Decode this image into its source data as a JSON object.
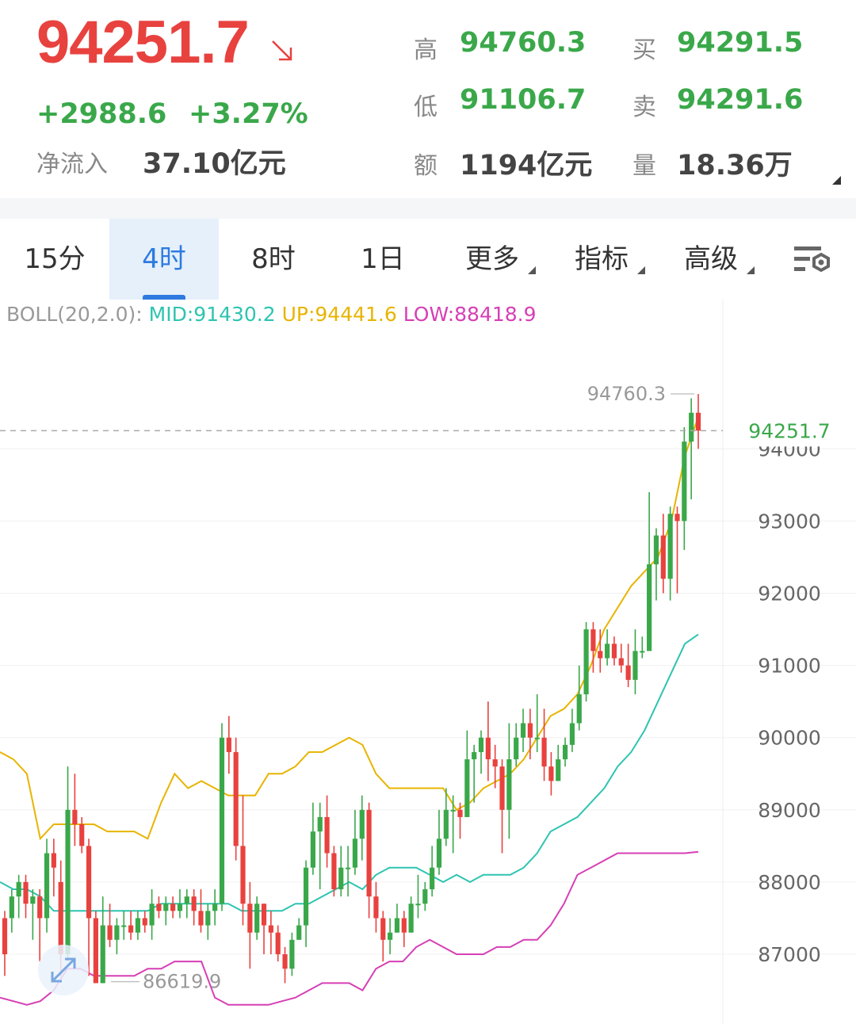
{
  "quote": {
    "price": "94251.7",
    "change": "+2988.6",
    "change_pct": "+3.27%",
    "net_inflow_label": "净流入",
    "net_inflow_value": "37.10亿元",
    "trend_icon": "arrow-down-right-icon",
    "stats": [
      {
        "label": "高",
        "value": "94760.3",
        "color": "green"
      },
      {
        "label": "买",
        "value": "94291.5",
        "color": "green"
      },
      {
        "label": "低",
        "value": "91106.7",
        "color": "green"
      },
      {
        "label": "卖",
        "value": "94291.6",
        "color": "green"
      },
      {
        "label": "额",
        "value": "1194亿元",
        "color": "dark"
      },
      {
        "label": "量",
        "value": "18.36万",
        "color": "dark"
      }
    ]
  },
  "tabs": [
    {
      "label": "15分",
      "active": false,
      "dropdown": false
    },
    {
      "label": "4时",
      "active": true,
      "dropdown": false
    },
    {
      "label": "8时",
      "active": false,
      "dropdown": false
    },
    {
      "label": "1日",
      "active": false,
      "dropdown": false
    },
    {
      "label": "更多",
      "active": false,
      "dropdown": true
    },
    {
      "label": "指标",
      "active": false,
      "dropdown": true
    },
    {
      "label": "高级",
      "active": false,
      "dropdown": true
    }
  ],
  "settings_icon": "chart-settings-icon",
  "boll": {
    "name": "BOLL(20,2.0):",
    "mid": "MID:91430.2",
    "up": "UP:94441.6",
    "low": "LOW:88418.9"
  },
  "colors": {
    "up": "#e8423f",
    "down": "#3aa84a",
    "mid_line": "#2ec4b0",
    "upper_line": "#e8b400",
    "lower_line": "#d63fb5",
    "accent": "#2e7be0"
  },
  "chart_data": {
    "type": "candlestick",
    "timeframe": "4时",
    "y_ticks": [
      94000,
      93000,
      92000,
      91000,
      90000,
      89000,
      88000,
      87000
    ],
    "ylim": [
      86100,
      95300
    ],
    "current_price": 94251.7,
    "current_price_label": "94251.7",
    "high_marker": {
      "value": 94760.3,
      "label": "94760.3"
    },
    "low_marker": {
      "value": 86619.9,
      "label": "86619.9"
    },
    "candles": [
      [
        87500,
        87000,
        87600,
        86700
      ],
      [
        87500,
        87800,
        87900,
        87300
      ],
      [
        87800,
        88000,
        88100,
        87500
      ],
      [
        88000,
        87700,
        88100,
        87500
      ],
      [
        87700,
        87800,
        87900,
        87200
      ],
      [
        87800,
        87500,
        87900,
        86900
      ],
      [
        87500,
        88400,
        88600,
        87300
      ],
      [
        88400,
        88200,
        88600,
        87800
      ],
      [
        88000,
        87000,
        88300,
        86700
      ],
      [
        87000,
        89000,
        89600,
        86900
      ],
      [
        89000,
        88800,
        89500,
        88500
      ],
      [
        88800,
        88500,
        88900,
        88400
      ],
      [
        88500,
        87500,
        88600,
        86700
      ],
      [
        87500,
        86600,
        87600,
        86700
      ],
      [
        86600,
        87400,
        87800,
        86600
      ],
      [
        87400,
        87200,
        87700,
        87100
      ],
      [
        87200,
        87400,
        87500,
        87000
      ],
      [
        87400,
        87400,
        87600,
        87200
      ],
      [
        87400,
        87300,
        87600,
        87200
      ],
      [
        87300,
        87500,
        87600,
        87200
      ],
      [
        87500,
        87400,
        87600,
        87300
      ],
      [
        87400,
        87700,
        87900,
        87200
      ],
      [
        87700,
        87600,
        87800,
        87500
      ],
      [
        87600,
        87700,
        87800,
        87400
      ],
      [
        87700,
        87600,
        87800,
        87500
      ],
      [
        87600,
        87700,
        87900,
        87500
      ],
      [
        87700,
        87800,
        87900,
        87500
      ],
      [
        87800,
        87600,
        87900,
        87400
      ],
      [
        87600,
        87400,
        87900,
        87300
      ],
      [
        87400,
        87600,
        87700,
        87200
      ],
      [
        87600,
        87700,
        87900,
        87400
      ],
      [
        87700,
        90000,
        90200,
        87600
      ],
      [
        90000,
        89800,
        90300,
        89500
      ],
      [
        89800,
        88500,
        90000,
        88300
      ],
      [
        88500,
        87700,
        89200,
        87400
      ],
      [
        87700,
        87300,
        88000,
        86800
      ],
      [
        87300,
        87700,
        87800,
        87200
      ],
      [
        87700,
        87400,
        87700,
        87000
      ],
      [
        87400,
        87300,
        87600,
        87000
      ],
      [
        87300,
        87000,
        87400,
        86900
      ],
      [
        87000,
        86800,
        87100,
        86600
      ],
      [
        86800,
        87200,
        87300,
        86700
      ],
      [
        87200,
        87400,
        87500,
        87200
      ],
      [
        87400,
        88200,
        88300,
        87100
      ],
      [
        88200,
        88700,
        89100,
        88100
      ],
      [
        88700,
        88900,
        89100,
        87900
      ],
      [
        88900,
        88400,
        89200,
        88200
      ],
      [
        88400,
        87900,
        88500,
        87800
      ],
      [
        87900,
        88200,
        88500,
        87800
      ],
      [
        88200,
        88200,
        88500,
        87800
      ],
      [
        88200,
        88600,
        89000,
        88100
      ],
      [
        88600,
        89000,
        89200,
        88300
      ],
      [
        89000,
        87800,
        89100,
        87500
      ],
      [
        87800,
        87500,
        88000,
        87300
      ],
      [
        87500,
        87200,
        87600,
        86900
      ],
      [
        87200,
        87300,
        87500,
        87000
      ],
      [
        87300,
        87500,
        87700,
        87300
      ],
      [
        87500,
        87300,
        87600,
        87100
      ],
      [
        87300,
        87700,
        87800,
        87300
      ],
      [
        87700,
        87700,
        88100,
        87500
      ],
      [
        87700,
        87900,
        88000,
        87600
      ],
      [
        87900,
        88200,
        88500,
        87800
      ],
      [
        88200,
        88600,
        89000,
        88100
      ],
      [
        88600,
        89000,
        89300,
        88500
      ],
      [
        89000,
        89000,
        89200,
        88400
      ],
      [
        89000,
        88900,
        89100,
        88600
      ],
      [
        88900,
        89700,
        90100,
        88900
      ],
      [
        89700,
        89800,
        89900,
        89100
      ],
      [
        89800,
        90000,
        90100,
        89500
      ],
      [
        90000,
        89700,
        90500,
        89400
      ],
      [
        89700,
        89600,
        89900,
        89300
      ],
      [
        89600,
        89000,
        89700,
        88400
      ],
      [
        89000,
        89700,
        90200,
        88600
      ],
      [
        89700,
        90000,
        90200,
        89600
      ],
      [
        90000,
        90200,
        90400,
        89800
      ],
      [
        90200,
        90000,
        90400,
        89700
      ],
      [
        90000,
        90000,
        90600,
        89800
      ],
      [
        90000,
        89600,
        90400,
        89400
      ],
      [
        89600,
        89400,
        89800,
        89200
      ],
      [
        89400,
        89700,
        89900,
        89400
      ],
      [
        89700,
        89900,
        90000,
        89600
      ],
      [
        89900,
        90200,
        90400,
        89800
      ],
      [
        90200,
        90600,
        91000,
        90100
      ],
      [
        90600,
        91500,
        91600,
        90500
      ],
      [
        91500,
        91200,
        91600,
        90900
      ],
      [
        91200,
        91100,
        91500,
        90900
      ],
      [
        91100,
        91300,
        91500,
        91000
      ],
      [
        91300,
        91100,
        91400,
        91000
      ],
      [
        91100,
        91000,
        91300,
        90900
      ],
      [
        91000,
        90800,
        91300,
        90700
      ],
      [
        90800,
        91200,
        91500,
        90600
      ],
      [
        91200,
        91200,
        91400,
        91100
      ],
      [
        91200,
        92400,
        93400,
        91300
      ],
      [
        92400,
        92800,
        92900,
        91900
      ],
      [
        92800,
        92200,
        93100,
        92000
      ],
      [
        92200,
        93100,
        93200,
        91900
      ],
      [
        93100,
        93000,
        93200,
        92000
      ],
      [
        93000,
        94100,
        94300,
        92600
      ],
      [
        94100,
        94500,
        94700,
        93300
      ],
      [
        94500,
        94252,
        94760,
        94000
      ]
    ],
    "boll_mid": [
      88000,
      87900,
      87900,
      87800,
      87600,
      87600,
      87600,
      87600,
      87600,
      87600,
      87600,
      87600,
      87700,
      87700,
      87700,
      87700,
      87700,
      87700,
      87600,
      87600,
      87600,
      87600,
      87700,
      87700,
      87800,
      87900,
      88000,
      87900,
      88100,
      88200,
      88200,
      88200,
      88100,
      88000,
      88100,
      88000,
      88100,
      88100,
      88100,
      88200,
      88400,
      88700,
      88800,
      88900,
      89100,
      89300,
      89600,
      89800,
      90100,
      90500,
      90900,
      91300,
      91430
    ],
    "boll_upper": [
      89800,
      89700,
      89500,
      88600,
      88800,
      88800,
      88800,
      88800,
      88700,
      88700,
      88700,
      88600,
      89100,
      89500,
      89300,
      89400,
      89300,
      89200,
      89200,
      89200,
      89500,
      89500,
      89600,
      89800,
      89800,
      89900,
      90000,
      89900,
      89500,
      89300,
      89300,
      89300,
      89300,
      89300,
      89000,
      89100,
      89300,
      89400,
      89500,
      89700,
      90000,
      90300,
      90400,
      90600,
      91000,
      91500,
      91800,
      92100,
      92300,
      92500,
      93000,
      93900,
      94442
    ],
    "boll_lower": [
      86400,
      86350,
      86300,
      86350,
      86500,
      86800,
      86800,
      86700,
      86700,
      86700,
      86700,
      86800,
      86800,
      86900,
      86900,
      86900,
      86400,
      86300,
      86300,
      86300,
      86300,
      86350,
      86400,
      86500,
      86600,
      86600,
      86600,
      86500,
      86800,
      86900,
      86900,
      87100,
      87200,
      87100,
      87000,
      87000,
      87000,
      87100,
      87100,
      87200,
      87200,
      87400,
      87700,
      88100,
      88200,
      88300,
      88400,
      88400,
      88400,
      88400,
      88400,
      88400,
      88419
    ]
  }
}
